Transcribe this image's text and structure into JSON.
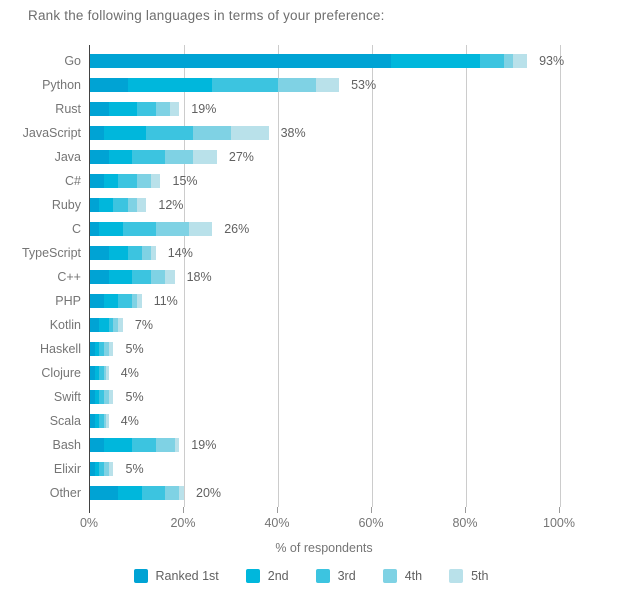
{
  "chart_data": {
    "type": "bar",
    "orientation": "horizontal",
    "stacked": true,
    "title": "Rank the following languages in terms of your preference:",
    "xlabel": "% of respondents",
    "xlim": [
      0,
      100
    ],
    "x_ticks": [
      "0%",
      "20%",
      "40%",
      "60%",
      "80%",
      "100%"
    ],
    "grid": true,
    "legend_position": "bottom",
    "categories": [
      "Go",
      "Python",
      "Rust",
      "JavaScript",
      "Java",
      "C#",
      "Ruby",
      "C",
      "TypeScript",
      "C++",
      "PHP",
      "Kotlin",
      "Haskell",
      "Clojure",
      "Swift",
      "Scala",
      "Bash",
      "Elixir",
      "Other"
    ],
    "totals": [
      93,
      53,
      19,
      38,
      27,
      15,
      12,
      26,
      14,
      18,
      11,
      7,
      5,
      4,
      5,
      4,
      19,
      5,
      20
    ],
    "total_labels": [
      "93%",
      "53%",
      "19%",
      "38%",
      "27%",
      "15%",
      "12%",
      "26%",
      "14%",
      "18%",
      "11%",
      "7%",
      "5%",
      "4%",
      "5%",
      "4%",
      "19%",
      "5%",
      "20%"
    ],
    "series": [
      {
        "name": "Ranked 1st",
        "color": "#00a3d4",
        "values": [
          64,
          8,
          4,
          3,
          4,
          3,
          2,
          2,
          4,
          4,
          3,
          2,
          1,
          1,
          1,
          1,
          3,
          1,
          6
        ]
      },
      {
        "name": "2nd",
        "color": "#00b7dc",
        "values": [
          19,
          18,
          6,
          9,
          5,
          3,
          3,
          5,
          4,
          5,
          3,
          2,
          1,
          1,
          1,
          1,
          6,
          1,
          5
        ]
      },
      {
        "name": "3rd",
        "color": "#3cc4e0",
        "values": [
          5,
          14,
          4,
          10,
          7,
          4,
          3,
          7,
          3,
          4,
          3,
          1,
          1,
          1,
          1,
          1,
          5,
          1,
          5
        ]
      },
      {
        "name": "4th",
        "color": "#7fd2e4",
        "values": [
          2,
          8,
          3,
          8,
          6,
          3,
          2,
          7,
          2,
          3,
          1,
          1,
          1,
          0.5,
          1,
          0.5,
          4,
          1,
          3
        ]
      },
      {
        "name": "5th",
        "color": "#b9e1ea",
        "values": [
          3,
          5,
          2,
          8,
          5,
          2,
          2,
          5,
          1,
          2,
          1,
          1,
          1,
          0.5,
          1,
          0.5,
          1,
          1,
          1
        ]
      }
    ],
    "colors": {
      "axis_line": "#424242",
      "gridline": "#cccccc",
      "tick": "#9a9a9a",
      "title_text": "#6e6e6e",
      "category_text": "#757575",
      "value_text": "#616161"
    }
  }
}
